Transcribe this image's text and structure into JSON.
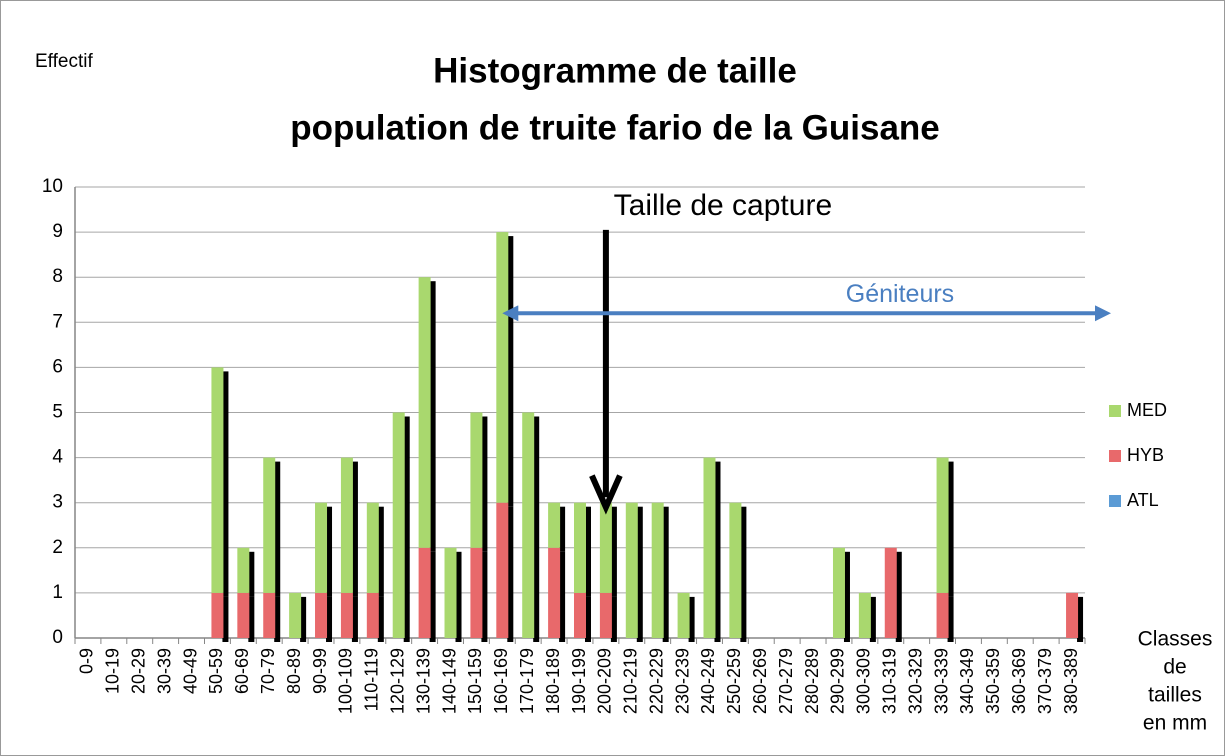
{
  "chart_data": {
    "type": "bar",
    "stacked": true,
    "title": [
      "Histogramme de taille",
      "population de truite fario de la Guisane"
    ],
    "y_label": "Effectif",
    "x_label": [
      "Classes",
      "de",
      "tailles",
      "en mm"
    ],
    "annotations": [
      "Taille de capture",
      "Géniteurs"
    ],
    "categories": [
      "0-9",
      "10-19",
      "20-29",
      "30-39",
      "40-49",
      "50-59",
      "60-69",
      "70-79",
      "80-89",
      "90-99",
      "100-109",
      "110-119",
      "120-129",
      "130-139",
      "140-149",
      "150-159",
      "160-169",
      "170-179",
      "180-189",
      "190-199",
      "200-209",
      "210-219",
      "220-229",
      "230-239",
      "240-249",
      "250-259",
      "260-269",
      "270-279",
      "280-289",
      "290-299",
      "300-309",
      "310-319",
      "320-329",
      "330-339",
      "340-349",
      "350-359",
      "360-369",
      "370-379",
      "380-389"
    ],
    "series": [
      {
        "name": "MED",
        "color": "#a9d86e",
        "values": [
          0,
          0,
          0,
          0,
          0,
          5,
          1,
          3,
          1,
          2,
          3,
          2,
          5,
          6,
          2,
          3,
          6,
          5,
          1,
          2,
          2,
          3,
          3,
          1,
          4,
          3,
          0,
          0,
          0,
          2,
          1,
          0,
          0,
          3,
          0,
          0,
          0,
          0,
          0
        ]
      },
      {
        "name": "HYB",
        "color": "#e8696b",
        "values": [
          0,
          0,
          0,
          0,
          0,
          1,
          1,
          1,
          0,
          1,
          1,
          1,
          0,
          2,
          0,
          2,
          3,
          0,
          2,
          1,
          1,
          0,
          0,
          0,
          0,
          0,
          0,
          0,
          0,
          0,
          0,
          2,
          0,
          1,
          0,
          0,
          0,
          0,
          1
        ]
      },
      {
        "name": "ATL",
        "color": "#5b9bd5",
        "values": [
          0,
          0,
          0,
          0,
          0,
          0,
          0,
          0,
          0,
          0,
          0,
          0,
          0,
          0,
          0,
          0,
          0,
          0,
          0,
          0,
          0,
          0,
          0,
          0,
          0,
          0,
          0,
          0,
          0,
          0,
          0,
          0,
          0,
          0,
          0,
          0,
          0,
          0,
          0
        ]
      }
    ],
    "ylim": [
      0,
      10
    ],
    "yticks": [
      0,
      1,
      2,
      3,
      4,
      5,
      6,
      7,
      8,
      9,
      10
    ],
    "grid": true,
    "legend": "right"
  }
}
